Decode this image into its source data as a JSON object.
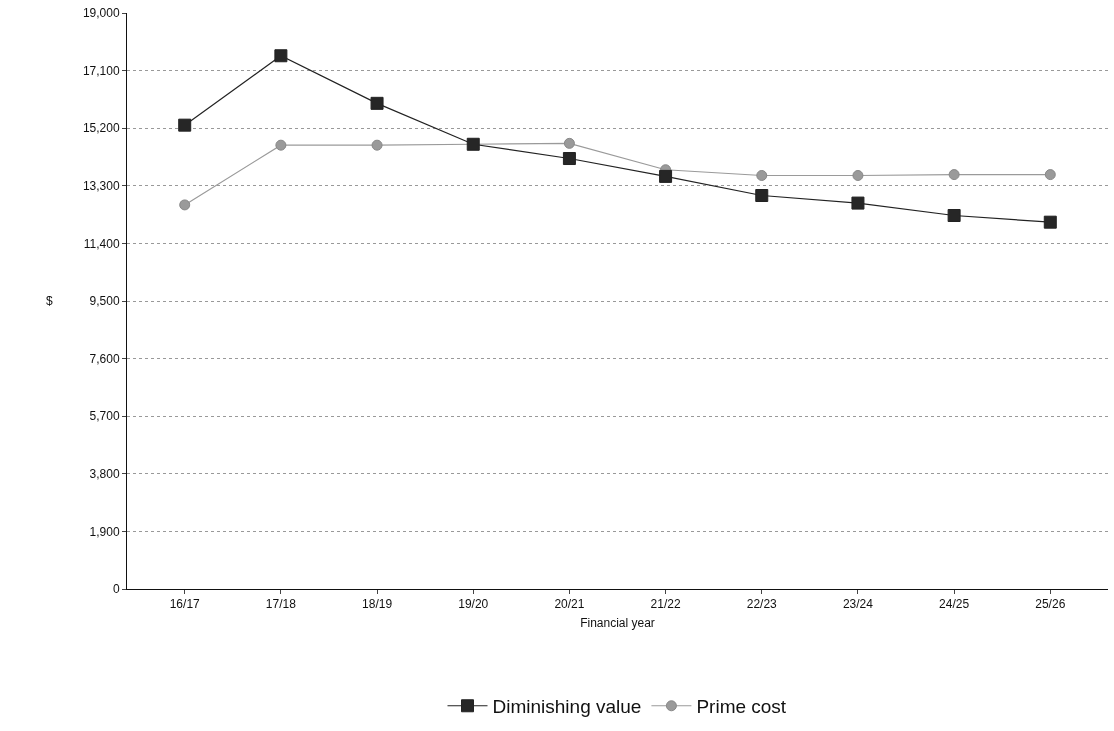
{
  "chart_data": {
    "type": "line",
    "xlabel": "Financial year",
    "ylabel": "$",
    "categories": [
      "16/17",
      "17/18",
      "18/19",
      "19/20",
      "20/21",
      "21/22",
      "22/23",
      "23/24",
      "24/25",
      "25/26"
    ],
    "series": [
      {
        "name": "Diminishing value",
        "color": "#262626",
        "marker": "square",
        "values": [
          15300,
          17590,
          16020,
          14670,
          14200,
          13610,
          12980,
          12730,
          12320,
          12100
        ]
      },
      {
        "name": "Prime cost",
        "color": "#9a9a9a",
        "marker": "circle",
        "values": [
          12670,
          14640,
          14640,
          14670,
          14700,
          13830,
          13640,
          13640,
          13670,
          13670
        ]
      }
    ],
    "ylim": [
      0,
      19000
    ],
    "yticks": [
      {
        "value": 0,
        "label": "0"
      },
      {
        "value": 1900,
        "label": "1,900"
      },
      {
        "value": 3800,
        "label": "3,800"
      },
      {
        "value": 5700,
        "label": "5,700"
      },
      {
        "value": 7600,
        "label": "7,600"
      },
      {
        "value": 9500,
        "label": "9,500"
      },
      {
        "value": 11400,
        "label": "11,400"
      },
      {
        "value": 13300,
        "label": "13,300"
      },
      {
        "value": 15200,
        "label": "15,200"
      },
      {
        "value": 17100,
        "label": "17,100"
      },
      {
        "value": 19000,
        "label": "19,000"
      }
    ],
    "grid": "y",
    "legend": "bottom",
    "line_style": "solid"
  }
}
